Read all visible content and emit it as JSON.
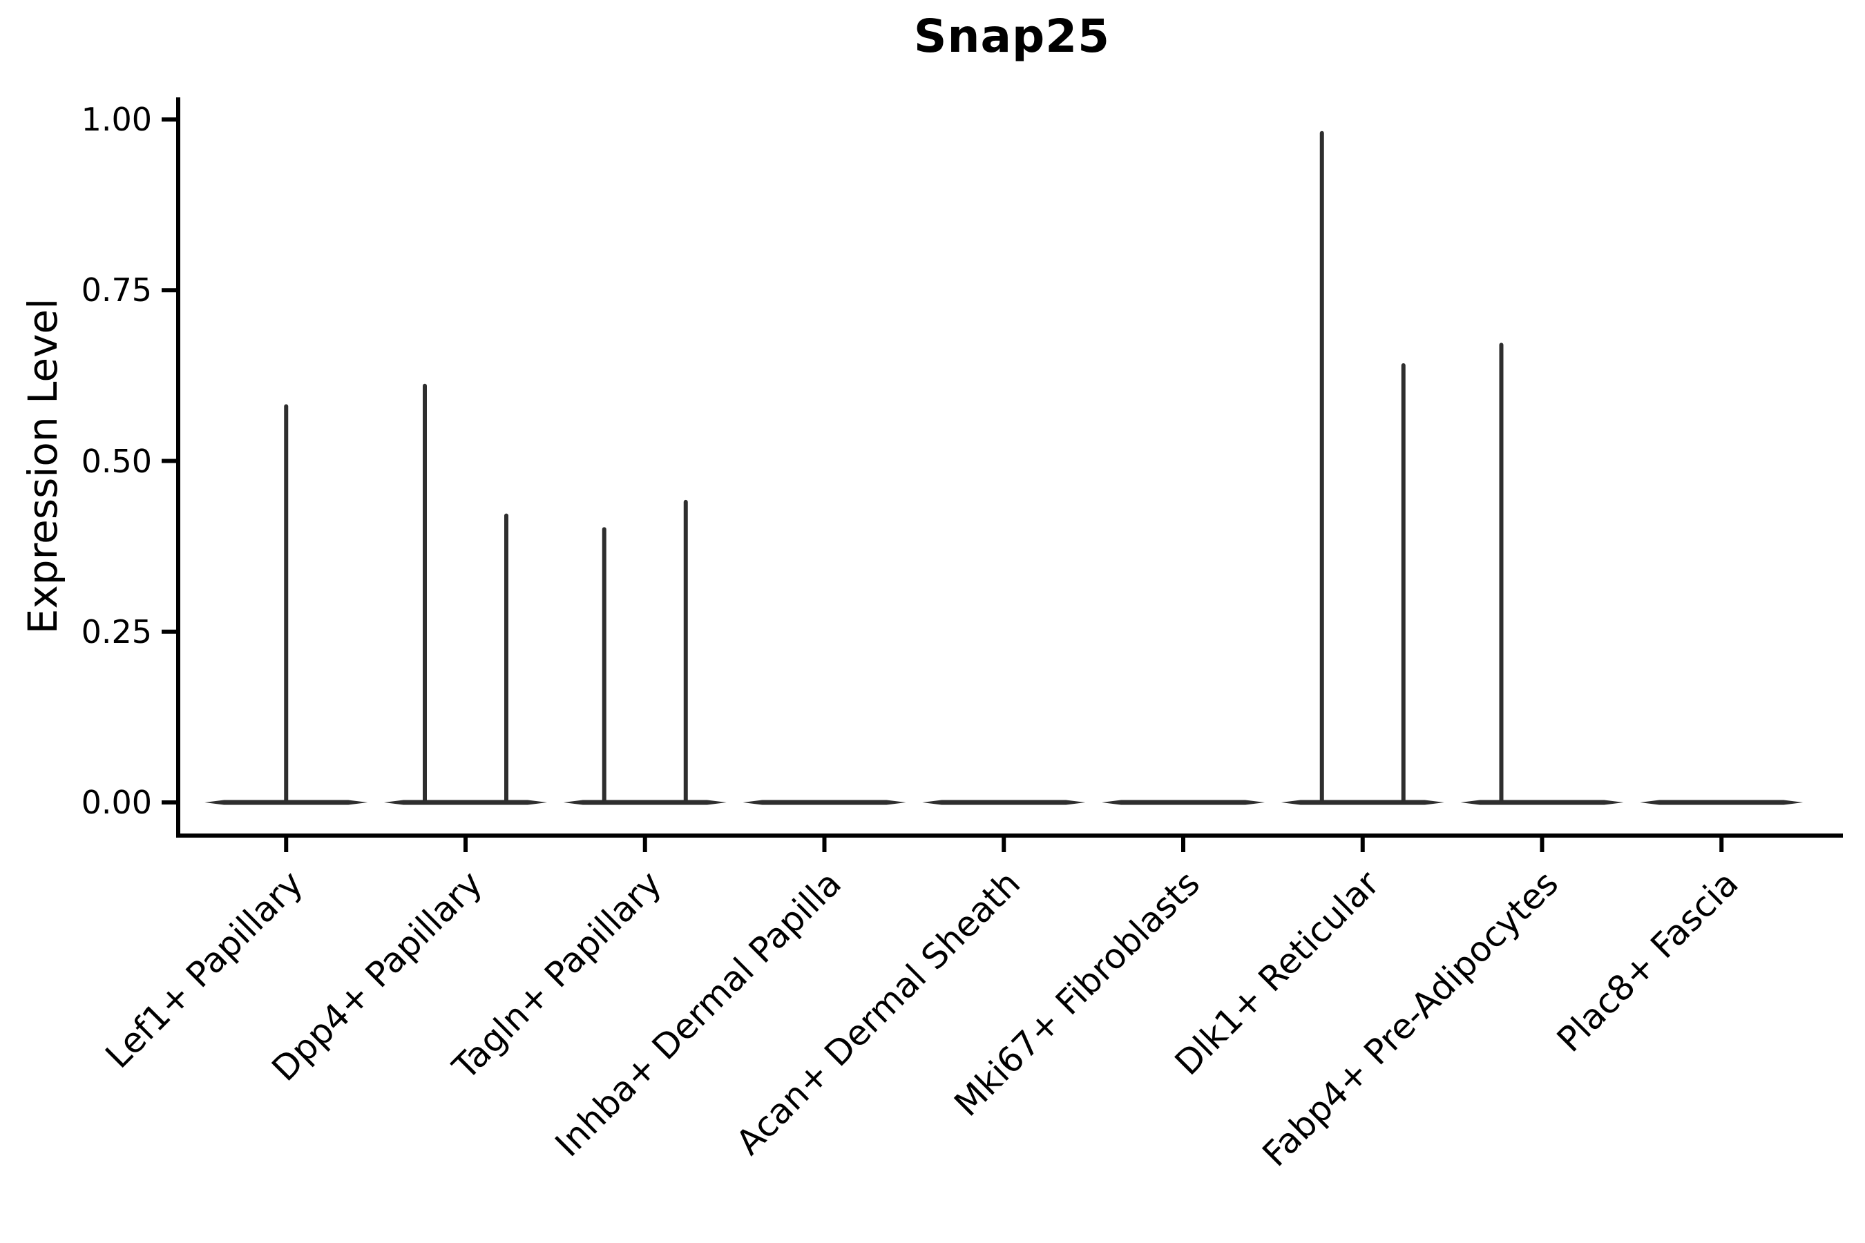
{
  "title": "Snap25",
  "colors": {
    "background": "#ffffff",
    "axis": "#000000",
    "text": "#000000",
    "violin_stroke": "#2e2e2e"
  },
  "chart_data": {
    "type": "violin",
    "title": "Snap25",
    "xlabel": "",
    "ylabel": "Expression Level",
    "ylim": [
      -0.05,
      1.03
    ],
    "grid": false,
    "legend": null,
    "yticks": [
      {
        "label": "0.00",
        "value": 0.0
      },
      {
        "label": "0.25",
        "value": 0.25
      },
      {
        "label": "0.50",
        "value": 0.5
      },
      {
        "label": "0.75",
        "value": 0.75
      },
      {
        "label": "1.00",
        "value": 1.0
      }
    ],
    "categories": [
      "Lef1+ Papillary",
      "Dpp4+ Papillary",
      "Tagln+ Papillary",
      "Inhba+ Dermal Papilla",
      "Acan+ Dermal Sheath",
      "Mki67+ Fibroblasts",
      "Dlk1+ Reticular",
      "Fabp4+ Pre-Adipocytes",
      "Plac8+ Fascia"
    ],
    "violins": [
      {
        "category": "Lef1+ Papillary",
        "baseline": 0.0,
        "spikes": [
          {
            "value": 0.58,
            "offset": 0.0
          }
        ]
      },
      {
        "category": "Dpp4+ Papillary",
        "baseline": 0.0,
        "spikes": [
          {
            "value": 0.61,
            "offset": -0.5
          },
          {
            "value": 0.42,
            "offset": 0.5
          }
        ]
      },
      {
        "category": "Tagln+ Papillary",
        "baseline": 0.0,
        "spikes": [
          {
            "value": 0.4,
            "offset": -0.5
          },
          {
            "value": 0.44,
            "offset": 0.5
          }
        ]
      },
      {
        "category": "Inhba+ Dermal Papilla",
        "baseline": 0.0,
        "spikes": []
      },
      {
        "category": "Acan+ Dermal Sheath",
        "baseline": 0.0,
        "spikes": []
      },
      {
        "category": "Mki67+ Fibroblasts",
        "baseline": 0.0,
        "spikes": []
      },
      {
        "category": "Dlk1+ Reticular",
        "baseline": 0.0,
        "spikes": [
          {
            "value": 0.98,
            "offset": -0.5
          },
          {
            "value": 0.64,
            "offset": 0.5
          }
        ]
      },
      {
        "category": "Fabp4+ Pre-Adipocytes",
        "baseline": 0.0,
        "spikes": [
          {
            "value": 0.67,
            "offset": -0.5
          }
        ]
      },
      {
        "category": "Plac8+ Fascia",
        "baseline": 0.0,
        "spikes": []
      }
    ]
  }
}
